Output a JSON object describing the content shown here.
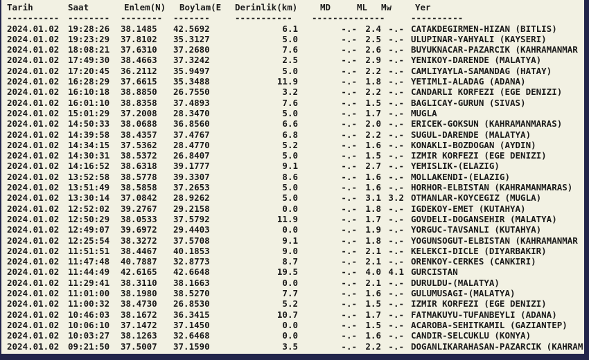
{
  "page": {
    "bg": "#f2f1e3",
    "frame": "#22254a",
    "text": "#1a1a1a"
  },
  "table": {
    "headers": {
      "date": "Tarih",
      "time": "Saat",
      "lat": "Enlem(N)",
      "lon": "Boylam(E)",
      "depth": "Derinlik(km)",
      "md": "MD",
      "ml": "ML",
      "mw": "Mw",
      "yer": "Yer"
    },
    "underline": {
      "date": "----------",
      "time": "--------",
      "lat": "--------",
      "lon": "-------",
      "depth": "-----------",
      "mdmlmw": "--------------",
      "yer": "----------"
    },
    "rows": [
      {
        "date": "2024.01.02",
        "time": "19:28:26",
        "lat": "38.1485",
        "lon": "42.5692",
        "depth": "6.1",
        "md": "-.-",
        "ml": "2.4",
        "mw": "-.-",
        "yer": "CATAKDEGIRMEN-HIZAN (BITLIS)"
      },
      {
        "date": "2024.01.02",
        "time": "19:23:29",
        "lat": "37.8102",
        "lon": "35.3127",
        "depth": "5.0",
        "md": "-.-",
        "ml": "2.5",
        "mw": "-.-",
        "yer": "ULUPINAR-YAHYALI (KAYSERI)"
      },
      {
        "date": "2024.01.02",
        "time": "18:08:21",
        "lat": "37.6310",
        "lon": "37.2680",
        "depth": "7.6",
        "md": "-.-",
        "ml": "2.6",
        "mw": "-.-",
        "yer": "BUYUKNACAR-PAZARCIK (KAHRAMANMAR"
      },
      {
        "date": "2024.01.02",
        "time": "17:49:30",
        "lat": "38.4663",
        "lon": "37.3242",
        "depth": "2.5",
        "md": "-.-",
        "ml": "2.9",
        "mw": "-.-",
        "yer": "YENIKOY-DARENDE (MALATYA)"
      },
      {
        "date": "2024.01.02",
        "time": "17:20:45",
        "lat": "36.2112",
        "lon": "35.9497",
        "depth": "5.0",
        "md": "-.-",
        "ml": "2.2",
        "mw": "-.-",
        "yer": "CAMLIYAYLA-SAMANDAG (HATAY)"
      },
      {
        "date": "2024.01.02",
        "time": "16:28:29",
        "lat": "37.6615",
        "lon": "35.3488",
        "depth": "11.9",
        "md": "-.-",
        "ml": "1.8",
        "mw": "-.-",
        "yer": "YETIMLI-ALADAG (ADANA)"
      },
      {
        "date": "2024.01.02",
        "time": "16:10:18",
        "lat": "38.8850",
        "lon": "26.7550",
        "depth": "3.2",
        "md": "-.-",
        "ml": "2.2",
        "mw": "-.-",
        "yer": "CANDARLI KORFEZI (EGE DENIZI)"
      },
      {
        "date": "2024.01.02",
        "time": "16:01:10",
        "lat": "38.8358",
        "lon": "37.4893",
        "depth": "7.6",
        "md": "-.-",
        "ml": "1.5",
        "mw": "-.-",
        "yer": "BAGLICAY-GURUN (SIVAS)"
      },
      {
        "date": "2024.01.02",
        "time": "15:01:29",
        "lat": "37.2008",
        "lon": "28.3470",
        "depth": "5.0",
        "md": "-.-",
        "ml": "1.7",
        "mw": "-.-",
        "yer": "MUGLA"
      },
      {
        "date": "2024.01.02",
        "time": "14:50:33",
        "lat": "38.0688",
        "lon": "36.8560",
        "depth": "6.6",
        "md": "-.-",
        "ml": "2.0",
        "mw": "-.-",
        "yer": "ERICEK-GOKSUN (KAHRAMANMARAS)"
      },
      {
        "date": "2024.01.02",
        "time": "14:39:58",
        "lat": "38.4357",
        "lon": "37.4767",
        "depth": "6.8",
        "md": "-.-",
        "ml": "2.2",
        "mw": "-.-",
        "yer": "SUGUL-DARENDE (MALATYA)"
      },
      {
        "date": "2024.01.02",
        "time": "14:34:15",
        "lat": "37.5362",
        "lon": "28.4770",
        "depth": "5.2",
        "md": "-.-",
        "ml": "1.6",
        "mw": "-.-",
        "yer": "KONAKLI-BOZDOGAN (AYDIN)"
      },
      {
        "date": "2024.01.02",
        "time": "14:30:31",
        "lat": "38.5372",
        "lon": "26.8407",
        "depth": "5.0",
        "md": "-.-",
        "ml": "1.5",
        "mw": "-.-",
        "yer": "IZMIR KORFEZI (EGE DENIZI)"
      },
      {
        "date": "2024.01.02",
        "time": "14:16:52",
        "lat": "38.6318",
        "lon": "39.1777",
        "depth": "9.1",
        "md": "-.-",
        "ml": "2.7",
        "mw": "-.-",
        "yer": "YEMISLIK-(ELAZIG)"
      },
      {
        "date": "2024.01.02",
        "time": "13:52:58",
        "lat": "38.5778",
        "lon": "39.3307",
        "depth": "8.6",
        "md": "-.-",
        "ml": "1.6",
        "mw": "-.-",
        "yer": "MOLLAKENDI-(ELAZIG)"
      },
      {
        "date": "2024.01.02",
        "time": "13:51:49",
        "lat": "38.5858",
        "lon": "37.2653",
        "depth": "5.0",
        "md": "-.-",
        "ml": "1.6",
        "mw": "-.-",
        "yer": "HORHOR-ELBISTAN (KAHRAMANMARAS)"
      },
      {
        "date": "2024.01.02",
        "time": "13:30:14",
        "lat": "37.0842",
        "lon": "28.9262",
        "depth": "5.0",
        "md": "-.-",
        "ml": "3.1",
        "mw": "3.2",
        "yer": "OTMANLAR-KOYCEGIZ (MUGLA)"
      },
      {
        "date": "2024.01.02",
        "time": "12:52:02",
        "lat": "39.2767",
        "lon": "29.2158",
        "depth": "0.0",
        "md": "-.-",
        "ml": "1.8",
        "mw": "-.-",
        "yer": "IGDEKOY-EMET (KUTAHYA)"
      },
      {
        "date": "2024.01.02",
        "time": "12:50:29",
        "lat": "38.0533",
        "lon": "37.5792",
        "depth": "11.9",
        "md": "-.-",
        "ml": "1.7",
        "mw": "-.-",
        "yer": "GOVDELI-DOGANSEHIR (MALATYA)"
      },
      {
        "date": "2024.01.02",
        "time": "12:49:07",
        "lat": "39.6972",
        "lon": "29.4403",
        "depth": "0.0",
        "md": "-.-",
        "ml": "1.9",
        "mw": "-.-",
        "yer": "YORGUC-TAVSANLI (KUTAHYA)"
      },
      {
        "date": "2024.01.02",
        "time": "12:25:54",
        "lat": "38.3272",
        "lon": "37.5708",
        "depth": "9.1",
        "md": "-.-",
        "ml": "1.8",
        "mw": "-.-",
        "yer": "YOGUNSOGUT-ELBISTAN (KAHRAMANMAR"
      },
      {
        "date": "2024.01.02",
        "time": "11:51:51",
        "lat": "38.4467",
        "lon": "40.1853",
        "depth": "9.0",
        "md": "-.-",
        "ml": "2.1",
        "mw": "-.-",
        "yer": "KELEKCI-DICLE (DIYARBAKIR)"
      },
      {
        "date": "2024.01.02",
        "time": "11:47:48",
        "lat": "40.7887",
        "lon": "32.8773",
        "depth": "8.7",
        "md": "-.-",
        "ml": "2.1",
        "mw": "-.-",
        "yer": "ORENKOY-CERKES (CANKIRI)"
      },
      {
        "date": "2024.01.02",
        "time": "11:44:49",
        "lat": "42.6165",
        "lon": "42.6648",
        "depth": "19.5",
        "md": "-.-",
        "ml": "4.0",
        "mw": "4.1",
        "yer": "GURCISTAN"
      },
      {
        "date": "2024.01.02",
        "time": "11:29:41",
        "lat": "38.3110",
        "lon": "38.1663",
        "depth": "0.0",
        "md": "-.-",
        "ml": "2.1",
        "mw": "-.-",
        "yer": "DURULDU-(MALATYA)"
      },
      {
        "date": "2024.01.02",
        "time": "11:01:00",
        "lat": "38.1980",
        "lon": "38.5270",
        "depth": "7.7",
        "md": "-.-",
        "ml": "1.6",
        "mw": "-.-",
        "yer": "GULUMUSAGI-(MALATYA)"
      },
      {
        "date": "2024.01.02",
        "time": "11:00:32",
        "lat": "38.4730",
        "lon": "26.8530",
        "depth": "5.2",
        "md": "-.-",
        "ml": "1.5",
        "mw": "-.-",
        "yer": "IZMIR KORFEZI (EGE DENIZI)"
      },
      {
        "date": "2024.01.02",
        "time": "10:46:03",
        "lat": "38.1672",
        "lon": "36.3415",
        "depth": "10.7",
        "md": "-.-",
        "ml": "1.7",
        "mw": "-.-",
        "yer": "FATMAKUYU-TUFANBEYLI (ADANA)"
      },
      {
        "date": "2024.01.02",
        "time": "10:06:10",
        "lat": "37.1472",
        "lon": "37.1450",
        "depth": "0.0",
        "md": "-.-",
        "ml": "1.5",
        "mw": "-.-",
        "yer": "ACAROBA-SEHITKAMIL (GAZIANTEP)"
      },
      {
        "date": "2024.01.02",
        "time": "10:03:27",
        "lat": "38.1263",
        "lon": "32.6468",
        "depth": "0.0",
        "md": "-.-",
        "ml": "1.6",
        "mw": "-.-",
        "yer": "CANDIR-SELCUKLU (KONYA)"
      },
      {
        "date": "2024.01.02",
        "time": "09:21:50",
        "lat": "37.5007",
        "lon": "37.1590",
        "depth": "3.5",
        "md": "-.-",
        "ml": "2.2",
        "mw": "-.-",
        "yer": "DOGANLIKARAHASAN-PAZARCIK (KAHRAM"
      }
    ]
  }
}
